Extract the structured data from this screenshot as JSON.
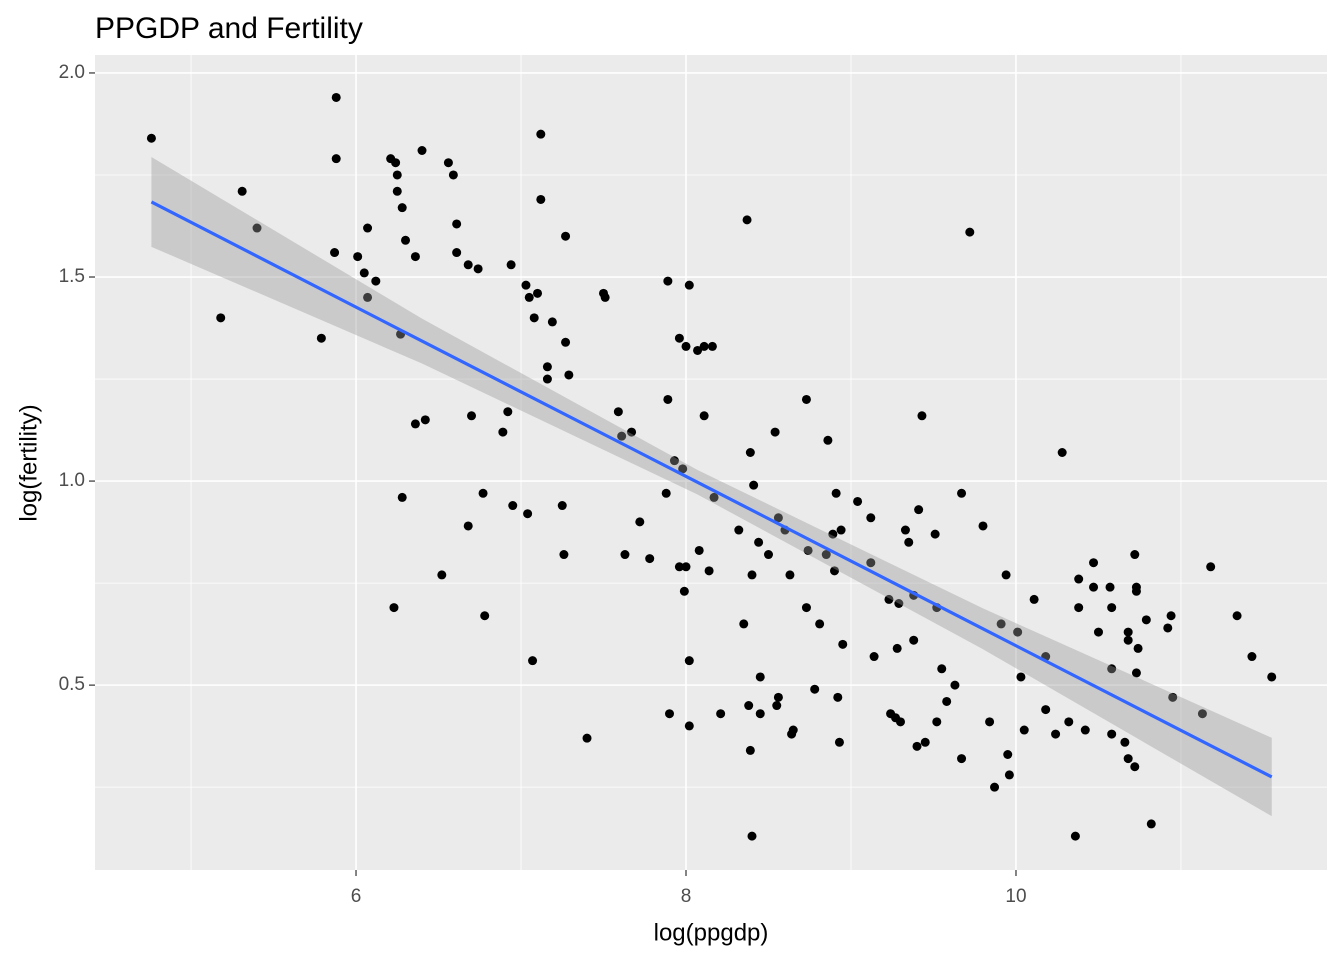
{
  "chart_data": {
    "type": "scatter",
    "title": "PPGDP and Fertility",
    "x_label": "log(ppgdp)",
    "y_label": "log(fertility)",
    "xlim": [
      4.418,
      11.885
    ],
    "ylim": [
      0.047,
      2.044
    ],
    "xticks": [
      6,
      8,
      10
    ],
    "yticks": [
      0.5,
      {
        "value": 1,
        "label": "1.0"
      },
      1.5,
      {
        "value": 2,
        "label": "2.0"
      }
    ],
    "xminor": [
      5,
      7,
      9,
      11
    ],
    "yminor": [
      0.25,
      0.75,
      1.25,
      1.75
    ],
    "grid": true,
    "color": "#000000",
    "x": [
      4.76,
      5.18,
      5.31,
      5.4,
      5.79,
      5.88,
      5.88,
      5.87,
      6.01,
      6.05,
      6.07,
      6.07,
      6.12,
      6.21,
      6.24,
      6.25,
      6.25,
      6.28,
      6.3,
      6.27,
      6.28,
      6.23,
      6.36,
      6.36,
      6.4,
      6.42,
      6.52,
      6.56,
      6.59,
      6.61,
      6.61,
      6.68,
      6.74,
      6.68,
      6.7,
      6.77,
      6.78,
      6.94,
      6.92,
      6.89,
      6.95,
      7.04,
      7.03,
      7.05,
      7.1,
      7.08,
      7.12,
      7.12,
      7.16,
      7.16,
      7.19,
      7.07,
      7.27,
      7.27,
      7.29,
      7.25,
      7.26,
      7.4,
      7.5,
      7.51,
      7.59,
      7.61,
      7.67,
      7.63,
      7.72,
      7.78,
      7.89,
      7.89,
      7.88,
      7.9,
      7.93,
      7.96,
      8.0,
      7.98,
      7.96,
      8.0,
      7.99,
      8.02,
      8.02,
      8.02,
      8.07,
      8.11,
      8.16,
      8.11,
      8.08,
      8.14,
      8.17,
      8.21,
      8.32,
      8.35,
      8.37,
      8.39,
      8.41,
      8.4,
      8.44,
      8.5,
      8.38,
      8.45,
      8.45,
      8.39,
      8.4,
      8.54,
      8.56,
      8.6,
      8.63,
      8.56,
      8.55,
      8.65,
      8.64,
      8.73,
      8.73,
      8.74,
      8.78,
      8.81,
      8.86,
      8.85,
      8.89,
      8.91,
      8.9,
      8.94,
      8.95,
      8.92,
      8.93,
      9.04,
      9.12,
      9.12,
      9.14,
      9.23,
      9.24,
      9.27,
      9.29,
      9.28,
      9.3,
      9.33,
      9.35,
      9.38,
      9.38,
      9.41,
      9.43,
      9.4,
      9.45,
      9.51,
      9.52,
      9.52,
      9.55,
      9.58,
      9.63,
      9.67,
      9.67,
      9.72,
      9.8,
      9.84,
      9.87,
      9.91,
      9.94,
      9.95,
      9.96,
      10.01,
      10.03,
      10.05,
      10.11,
      10.18,
      10.18,
      10.24,
      10.28,
      10.32,
      10.36,
      10.38,
      10.38,
      10.42,
      10.47,
      10.47,
      10.5,
      10.57,
      10.58,
      10.58,
      10.58,
      10.66,
      10.68,
      10.68,
      10.72,
      10.73,
      10.73,
      10.74,
      10.73,
      10.68,
      10.72,
      10.79,
      10.82,
      10.92,
      10.94,
      10.95,
      11.13,
      11.18,
      11.34,
      11.43,
      11.55
    ],
    "values": [
      1.84,
      1.4,
      1.71,
      1.62,
      1.35,
      1.94,
      1.79,
      1.56,
      1.55,
      1.51,
      1.62,
      1.45,
      1.49,
      1.79,
      1.78,
      1.75,
      1.71,
      1.67,
      1.59,
      1.36,
      0.96,
      0.69,
      1.55,
      1.14,
      1.81,
      1.15,
      0.77,
      1.78,
      1.75,
      1.63,
      1.56,
      1.53,
      1.52,
      0.89,
      1.16,
      0.97,
      0.67,
      1.53,
      1.17,
      1.12,
      0.94,
      0.92,
      1.48,
      1.45,
      1.46,
      1.4,
      1.85,
      1.69,
      1.28,
      1.25,
      1.39,
      0.56,
      1.6,
      1.34,
      1.26,
      0.94,
      0.82,
      0.37,
      1.46,
      1.45,
      1.17,
      1.11,
      1.12,
      0.82,
      0.9,
      0.81,
      1.49,
      1.2,
      0.97,
      0.43,
      1.05,
      1.35,
      1.33,
      1.03,
      0.79,
      0.79,
      0.73,
      1.48,
      0.56,
      0.4,
      1.32,
      1.33,
      1.33,
      1.16,
      0.83,
      0.78,
      0.96,
      0.43,
      0.88,
      0.65,
      1.64,
      1.07,
      0.99,
      0.77,
      0.85,
      0.82,
      0.45,
      0.43,
      0.52,
      0.34,
      0.13,
      1.12,
      0.91,
      0.88,
      0.77,
      0.47,
      0.45,
      0.39,
      0.38,
      1.2,
      0.69,
      0.83,
      0.49,
      0.65,
      1.1,
      0.82,
      0.87,
      0.97,
      0.78,
      0.88,
      0.6,
      0.47,
      0.36,
      0.95,
      0.8,
      0.91,
      0.57,
      0.71,
      0.43,
      0.42,
      0.7,
      0.59,
      0.41,
      0.88,
      0.85,
      0.72,
      0.61,
      0.93,
      1.16,
      0.35,
      0.36,
      0.87,
      0.69,
      0.41,
      0.54,
      0.46,
      0.5,
      0.97,
      0.32,
      1.61,
      0.89,
      0.41,
      0.25,
      0.65,
      0.77,
      0.33,
      0.28,
      0.63,
      0.52,
      0.39,
      0.71,
      0.57,
      0.44,
      0.38,
      1.07,
      0.41,
      0.13,
      0.76,
      0.69,
      0.39,
      0.8,
      0.74,
      0.63,
      0.74,
      0.69,
      0.54,
      0.38,
      0.36,
      0.63,
      0.61,
      0.82,
      0.74,
      0.73,
      0.59,
      0.53,
      0.32,
      0.3,
      0.66,
      0.16,
      0.64,
      0.67,
      0.47,
      0.43,
      0.79,
      0.67,
      0.57,
      0.52
    ],
    "trend": {
      "color": "#3366FF",
      "band_color": "#999999",
      "x": [
        4.76,
        6.4,
        8.07,
        9.8,
        11.55
      ],
      "y": [
        1.684,
        1.343,
        0.997,
        0.638,
        0.275
      ],
      "lower": [
        1.574,
        1.288,
        0.967,
        0.588,
        0.179
      ],
      "upper": [
        1.794,
        1.398,
        1.027,
        0.688,
        0.371
      ]
    }
  }
}
